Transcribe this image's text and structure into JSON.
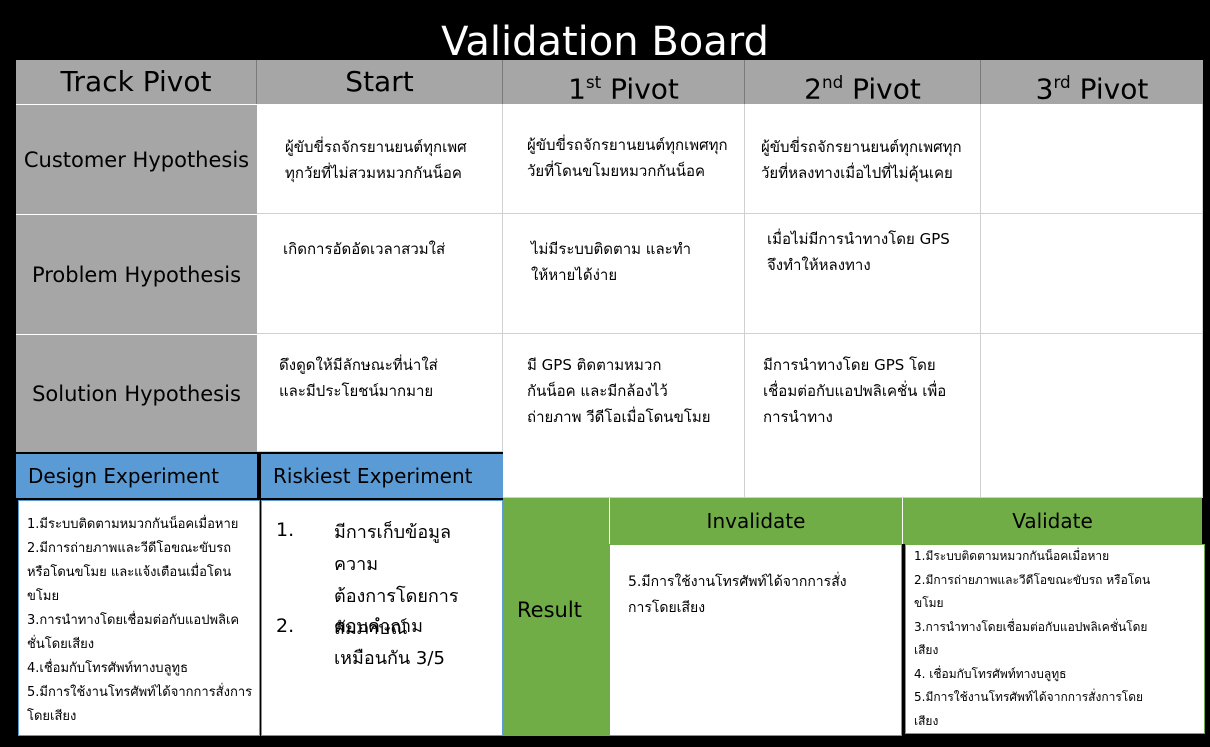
{
  "title": "Validation Board",
  "headers": {
    "track": "Track Pivot",
    "start": "Start",
    "p1_num": "1",
    "p1_sup": "st",
    "p1_word": " Pivot",
    "p2_num": "2",
    "p2_sup": "nd",
    "p2_word": " Pivot",
    "p3_num": "3",
    "p3_sup": "rd",
    "p3_word": " Pivot"
  },
  "rows": {
    "customer": {
      "label": "Customer Hypothesis",
      "start": [
        "ผู้ขับขี่รถจักรยานยนต์ทุกเพศ",
        "ทุกวัยที่ไม่สวมหมวกกันน็อค"
      ],
      "p1": [
        "ผู้ขับขี่รถจักรยานยนต์ทุกเพศทุก",
        "วัยที่โดนขโมยหมวกกันน็อค"
      ],
      "p2": [
        "ผู้ขับขี่รถจักรยานยนต์ทุกเพศทุก",
        "วัยที่หลงทางเมื่อไปที่ไม่คุ้นเคย"
      ]
    },
    "problem": {
      "label": "Problem Hypothesis",
      "start": [
        "เกิดการอัดอัดเวลาสวมใส่"
      ],
      "p1": [
        "ไม่มีระบบติดตาม และทำ",
        "ให้หายได้ง่าย"
      ],
      "p2": [
        "เมื่อไม่มีการนำทางโดย GPS",
        "จึงทำให้หลงทาง"
      ]
    },
    "solution": {
      "label": "Solution Hypothesis",
      "start": [
        "ดึงดูดให้มีลักษณะที่น่าใส่",
        "และมีประโยชน์มากมาย"
      ],
      "p1": [
        "มี GPS ติดตามหมวก",
        "กันน็อค และมีกล้องไว้",
        "ถ่ายภาพ วีดีโอเมื่อโดนขโมย"
      ],
      "p2": [
        "มีการนำทางโดย GPS โดย",
        "เชื่อมต่อกับแอปพลิเคชั่น เพื่อ",
        "การนำทาง"
      ]
    }
  },
  "design_experiment": {
    "header": "Design Experiment",
    "items": [
      "1.มีระบบติดตามหมวกกันน็อคเมื่อหาย",
      "2.มีการถ่ายภาพและวีดีโอขณะขับรถ",
      "หรือโดนขโมย และแจ้งเตือนเมื่อโดน",
      "ขโมย",
      "3.การนำทางโดยเชื่อมต่อกับแอปพลิเค",
      "ชั่นโดยเสียง",
      "4.เชื่อมกับโทรศัพท์ทางบลูทูธ",
      "5.มีการใช้งานโทรศัพท์ได้จากการสั่งการ",
      "โดยเสียง"
    ]
  },
  "riskiest_experiment": {
    "header": "Riskiest Experiment",
    "item1_num": "1.",
    "item1": [
      "มีการเก็บข้อมูลความ",
      "ต้องการโดยการ",
      "สัมภาษณ์"
    ],
    "item2_num": "2.",
    "item2": [
      "ตอบคำถาม",
      "เหมือนกัน 3/5"
    ]
  },
  "result": {
    "label": "Result",
    "invalidate_header": "Invalidate",
    "validate_header": "Validate",
    "invalidate_items": [
      "5.มีการใช้งานโทรศัพท์ได้จากการสั่ง",
      "การโดยเสียง"
    ],
    "validate_items": [
      "1.มีระบบติดตามหมวกกันน็อคเมื่อหาย",
      "2.มีการถ่ายภาพและวีดีโอขณะขับรถ หรือโดน",
      "ขโมย",
      "3.การนำทางโดยเชื่อมต่อกับแอปพลิเคชั่นโดย",
      "เสียง",
      "4. เชื่อมกับโทรศัพท์ทางบลูทูธ",
      "5.มีการใช้งานโทรศัพท์ได้จากการสั่งการโดย",
      "เสียง"
    ]
  },
  "colors": {
    "header_gray": "#a6a6a6",
    "experiment_blue": "#5b9bd5",
    "result_green": "#70ad47",
    "background": "#000000"
  }
}
